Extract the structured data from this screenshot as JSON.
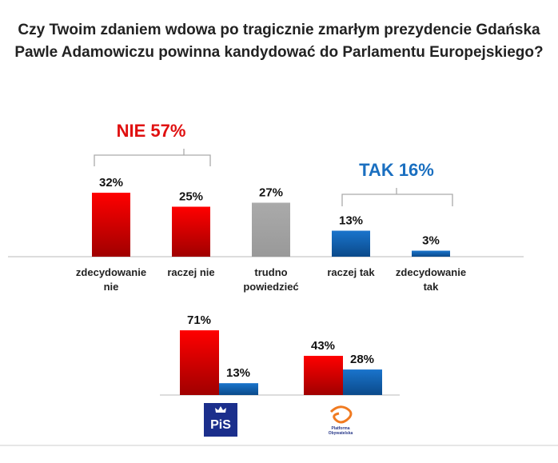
{
  "title_line1": "Czy Twoim zdaniem wdowa po tragicznie zmarłym prezydencie Gdańska",
  "title_line2": "Pawle Adamowiczu powinna kandydować do Parlamentu Europejskiego?",
  "chart_data": [
    {
      "type": "bar",
      "categories": [
        [
          "zdecydowanie",
          "nie"
        ],
        [
          "raczej nie"
        ],
        [
          "trudno",
          "powiedzieć"
        ],
        [
          "raczej tak"
        ],
        [
          "zdecydowanie",
          "tak"
        ]
      ],
      "values": [
        32,
        25,
        27,
        13,
        3
      ],
      "data_labels": [
        "32%",
        "25%",
        "27%",
        "13%",
        "3%"
      ],
      "colors": [
        "#e00000",
        "#e00000",
        "#a6a6a6",
        "#1464b4",
        "#1464b4"
      ],
      "groups": [
        {
          "label": "NIE 57%",
          "color": "#e01010"
        },
        {
          "label": "TAK 16%",
          "color": "#1a6fc0"
        }
      ]
    },
    {
      "type": "bar",
      "categories": [
        "PiS",
        "Platforma Obywatelska"
      ],
      "series": [
        {
          "values": [
            71,
            43
          ],
          "data_labels": [
            "71%",
            "43%"
          ],
          "color": "#e00000"
        },
        {
          "values": [
            13,
            28
          ],
          "data_labels": [
            "13%",
            "28%"
          ],
          "color": "#1464b4"
        }
      ],
      "logos": [
        "PiS",
        "Platforma Obywatelska"
      ]
    }
  ]
}
